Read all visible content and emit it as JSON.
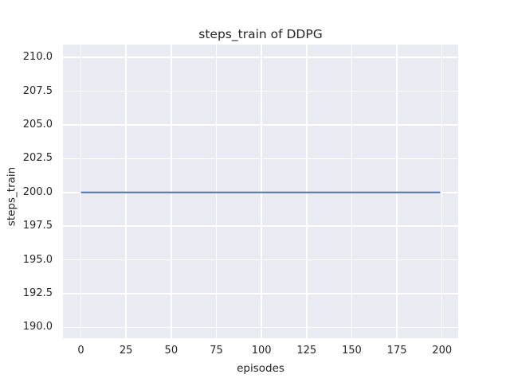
{
  "figure": {
    "background": "#ffffff"
  },
  "chart_data": {
    "type": "line",
    "title": "steps_train of DDPG",
    "xlabel": "episodes",
    "ylabel": "steps_train",
    "xlim": [
      -9.95,
      208.95
    ],
    "ylim": [
      189.2,
      210.95
    ],
    "grid": true,
    "x_ticks": [
      0,
      25,
      50,
      75,
      100,
      125,
      150,
      175,
      200
    ],
    "x_tick_labels": [
      "0",
      "25",
      "50",
      "75",
      "100",
      "125",
      "150",
      "175",
      "200"
    ],
    "y_ticks": [
      190.0,
      192.5,
      195.0,
      197.5,
      200.0,
      202.5,
      205.0,
      207.5,
      210.0
    ],
    "y_tick_labels": [
      "190.0",
      "192.5",
      "195.0",
      "197.5",
      "200.0",
      "202.5",
      "205.0",
      "207.5",
      "210.0"
    ],
    "series": [
      {
        "name": "steps_train",
        "color": "#4c72b0",
        "line_width": 2,
        "x": [
          0,
          199
        ],
        "y": [
          200,
          200
        ],
        "note": "constant value 200 for all episodes 0-199"
      }
    ],
    "style": {
      "plot_background": "#eaeaf2",
      "grid_color": "#ffffff",
      "text_color": "#262626"
    }
  }
}
